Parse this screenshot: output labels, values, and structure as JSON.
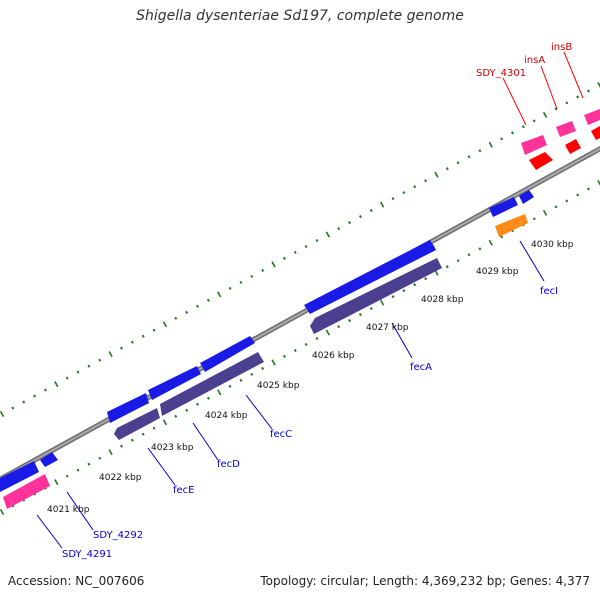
{
  "title": "Shigella dysenteriae Sd197, complete genome",
  "colors": {
    "backbone": "#8a8a8a",
    "tick": "#1b7a1b",
    "forward_cds": "#1a1ae6",
    "reverse_cds": "#4b3f8f",
    "rna_mobile": "#ff3399",
    "red_feature": "#ff0000",
    "orange_feature": "#ff8c1a",
    "red_label": "#cc0000",
    "blue_label": "#0000cc"
  },
  "kbp_labels": [
    "4021 kbp",
    "4022 kbp",
    "4023 kbp",
    "4024 kbp",
    "4025 kbp",
    "4026 kbp",
    "4027 kbp",
    "4028 kbp",
    "4029 kbp",
    "4030 kbp"
  ],
  "gene_labels": [
    {
      "text": "insB",
      "color": "red"
    },
    {
      "text": "insA",
      "color": "red"
    },
    {
      "text": "SDY_4301",
      "color": "red"
    },
    {
      "text": "fecI",
      "color": "blue"
    },
    {
      "text": "fecA",
      "color": "blue"
    },
    {
      "text": "fecC",
      "color": "blue"
    },
    {
      "text": "fecD",
      "color": "blue"
    },
    {
      "text": "fecE",
      "color": "blue"
    },
    {
      "text": "SDY_4292",
      "color": "blue"
    },
    {
      "text": "SDY_4291",
      "color": "blue"
    }
  ],
  "footer": {
    "accession": "Accession: NC_007606",
    "summary": "Topology: circular; Length: 4,369,232 bp; Genes: 4,377"
  }
}
